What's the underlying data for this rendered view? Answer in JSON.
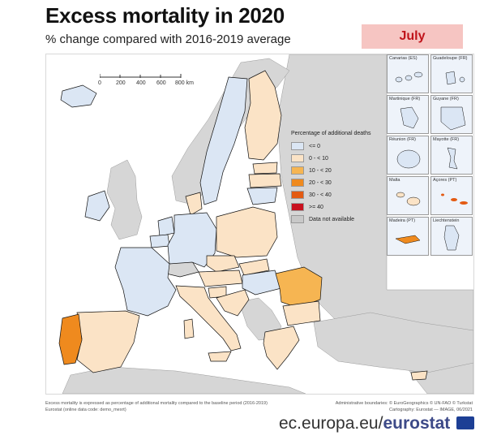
{
  "title": "Excess mortality in 2020",
  "subtitle": "% change compared with 2016-2019 average",
  "month": "July",
  "scale": {
    "ticks": [
      "0",
      "200",
      "400",
      "600",
      "800 km"
    ]
  },
  "legend": {
    "title": "Percentage of additional deaths",
    "items": [
      {
        "label": "<= 0",
        "color": "#dbe6f4"
      },
      {
        "label": "0 - < 10",
        "color": "#fbe3c6"
      },
      {
        "label": "10 - < 20",
        "color": "#f6b552"
      },
      {
        "label": "20 - < 30",
        "color": "#ef8a1e"
      },
      {
        "label": "30 - < 40",
        "color": "#e35a12"
      },
      {
        "label": ">= 40",
        "color": "#c8101e"
      },
      {
        "label": "Data not available",
        "color": "#c8c8c8"
      }
    ]
  },
  "colors": {
    "sea": "#ffffff",
    "non_eu": "#d6d6d6",
    "border": "#111111"
  },
  "insets": [
    {
      "label": "Canarias (ES)"
    },
    {
      "label": "Guadeloupe (FR)"
    },
    {
      "label": "Martinique (FR)"
    },
    {
      "label": "Guyane (FR)"
    },
    {
      "label": "Réunion (FR)"
    },
    {
      "label": "Mayotte (FR)"
    },
    {
      "label": "Malta"
    },
    {
      "label": "Açores (PT)"
    },
    {
      "label": "Madeira (PT)"
    },
    {
      "label": "Liechtenstein"
    }
  ],
  "footer": {
    "note1": "Excess mortality is expressed as percentage of additional mortality compared to the baseline period (2016-2019)",
    "note2": "Eurostat (online data code: demo_mexrt)",
    "credit1": "Administrative boundaries: © EuroGeographics © UN-FAO © Turkstat",
    "credit2": "Cartography: Eurostat — IMAGE, 06/2021"
  },
  "brand": {
    "prefix": "ec.europa.eu/",
    "name": "eurostat"
  }
}
